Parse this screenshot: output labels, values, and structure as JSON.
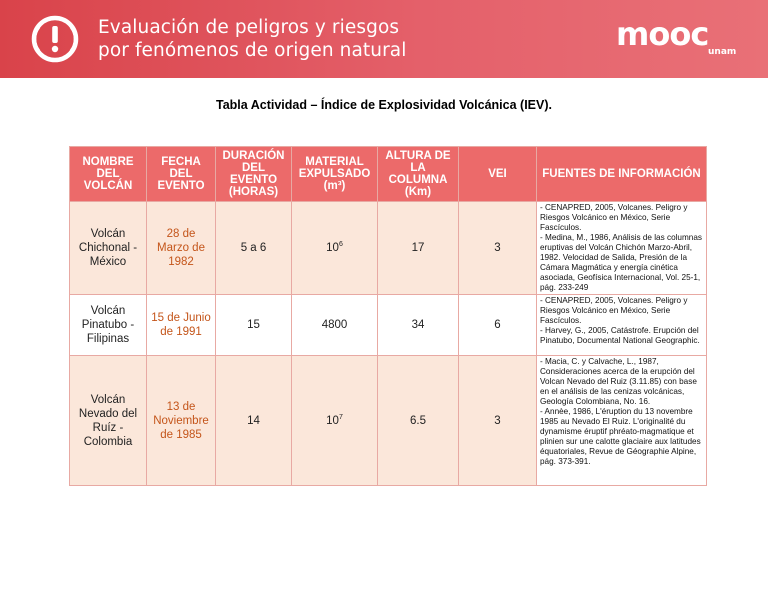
{
  "header": {
    "title_line1": "Evaluación de peligros y riesgos",
    "title_line2": "por fenómenos de origen natural",
    "brand_word": "mooc",
    "brand_sub": "unam",
    "icon": "warning-circle-icon",
    "accent_color": "#e0555c"
  },
  "caption": "Tabla Actividad – Índice de Explosividad Volcánica (IEV).",
  "table": {
    "columns": [
      "NOMBRE DEL VOLCÁN",
      "FECHA DEL EVENTO",
      "DURACIÓN DEL EVENTO (HORAS)",
      "MATERIAL EXPULSADO (m³)",
      "ALTURA DE LA COLUMNA (Km)",
      "VEI",
      "FUENTES DE INFORMACIÓN"
    ],
    "rows": [
      {
        "name": "Volcán Chichonal - México",
        "date": "28 de Marzo de 1982",
        "duration": "5 a 6",
        "material_base": "10",
        "material_exp": "6",
        "height": "17",
        "vei": "3",
        "sources": [
          "- CENAPRED, 2005, Volcanes. Peligro y Riesgos Volcánico en México, Serie Fascículos.",
          "- Medina, M., 1986, Análisis de las columnas eruptivas del Volcán Chichón Marzo-Abril, 1982. Velocidad de Salida, Presión de la Cámara Magmática y energía cinética asociada, Geofísica Internacional, Vol. 25-1, pág. 233-249"
        ]
      },
      {
        "name": "Volcán Pinatubo - Filipinas",
        "date": "15 de Junio de 1991",
        "duration": "15",
        "material_base": "4800",
        "material_exp": "",
        "height": "34",
        "vei": "6",
        "sources": [
          "- CENAPRED, 2005, Volcanes. Peligro y Riesgos Volcánico en México, Serie Fascículos.",
          "- Harvey, G., 2005, Catástrofe. Erupción del Pinatubo, Documental National Geographic."
        ]
      },
      {
        "name": "Volcán Nevado del Ruíz - Colombia",
        "date": "13 de Noviembre de 1985",
        "duration": "14",
        "material_base": "10",
        "material_exp": "7",
        "height": "6.5",
        "vei": "3",
        "sources": [
          "- Macia, C. y Calvache, L., 1987, Consideraciones acerca de la erupción del Volcan Nevado del Ruiz (3.11.85) con base en el análisis de las cenizas volcánicas, Geología Colombiana, No. 16.",
          "- Annèe, 1986, L'éruption du 13 novembre 1985 au Nevado El Ruiz. L'originalité du dynamisme éruptif phréato-magmatique et plinien sur une calotte glaciaire aux latitudes équatoriales, Revue de Géographie Alpine, pág. 373-391."
        ]
      }
    ]
  }
}
